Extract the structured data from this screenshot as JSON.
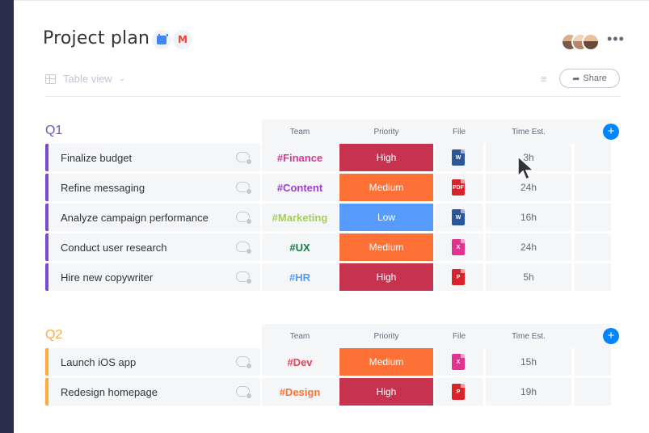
{
  "page": {
    "title": "Project plan"
  },
  "header": {
    "integrations": [
      {
        "icon": "google-calendar-icon"
      },
      {
        "icon": "gmail-icon",
        "glyph": "M"
      }
    ],
    "more_glyph": "•••",
    "share_label": "Share"
  },
  "toolbar": {
    "view_label": "Table view"
  },
  "columns": {
    "team": "Team",
    "priority": "Priority",
    "file": "File",
    "time": "Time Est."
  },
  "colors": {
    "q1": "#784bd1",
    "q2": "#fdab3d",
    "high": "#c7324f",
    "medium": "#fd7137",
    "low": "#579bfc",
    "add": "#0085ff"
  },
  "groups": [
    {
      "title": "Q1",
      "rows": [
        {
          "name": "Finalize budget",
          "team": "#Finance",
          "team_color": "#d13b92",
          "priority": "High",
          "file": "W",
          "file_color": "#2b579a",
          "time": "3h"
        },
        {
          "name": "Refine messaging",
          "team": "#Content",
          "team_color": "#9d3fcf",
          "priority": "Medium",
          "file": "PDF",
          "file_color": "#d8232a",
          "time": "24h"
        },
        {
          "name": "Analyze campaign performance",
          "team": "#Marketing",
          "team_color": "#a3d04f",
          "priority": "Low",
          "file": "W",
          "file_color": "#2b579a",
          "time": "16h"
        },
        {
          "name": "Conduct user research",
          "team": "#UX",
          "team_color": "#1b7a4a",
          "priority": "Medium",
          "file": "X",
          "file_color": "#e2348f",
          "time": "24h"
        },
        {
          "name": "Hire new copywriter",
          "team": "#HR",
          "team_color": "#579bfc",
          "priority": "High",
          "file": "P",
          "file_color": "#d8232a",
          "time": "5h"
        }
      ]
    },
    {
      "title": "Q2",
      "rows": [
        {
          "name": "Launch iOS app",
          "team": "#Dev",
          "team_color": "#e2445c",
          "priority": "Medium",
          "file": "X",
          "file_color": "#e2348f",
          "time": "15h"
        },
        {
          "name": "Redesign homepage",
          "team": "#Design",
          "team_color": "#fd7137",
          "priority": "High",
          "file": "P",
          "file_color": "#d8232a",
          "time": "19h"
        }
      ]
    }
  ]
}
